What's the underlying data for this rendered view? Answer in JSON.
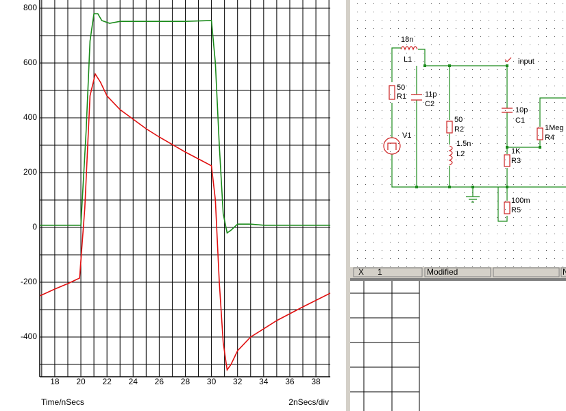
{
  "chart_data": {
    "type": "line",
    "x_label": "Time/nSecs",
    "scale_label": "2nSecs/div",
    "xlim": [
      16.85,
      39.1
    ],
    "ylim": [
      -545,
      830
    ],
    "xticks": [
      18,
      20,
      22,
      24,
      26,
      28,
      30,
      32,
      34,
      36,
      38
    ],
    "minor_xticks": [
      17,
      19,
      21,
      23,
      25,
      27,
      29,
      31,
      33,
      35,
      37,
      39
    ],
    "yticks": [
      -400,
      -200,
      0,
      200,
      400,
      600,
      800
    ],
    "minor_yticks": [
      -500,
      -300,
      -100,
      100,
      300,
      500,
      700
    ],
    "grid": true,
    "series": [
      {
        "color": "#1a8a1a",
        "x": [
          16.85,
          20,
          20.4,
          20.7,
          21,
          21.3,
          21.6,
          22.2,
          23,
          25,
          28,
          30,
          30.3,
          30.6,
          30.9,
          31.2,
          31.5,
          32,
          33,
          34,
          39.1
        ],
        "values": [
          8,
          8,
          350,
          680,
          780,
          780,
          755,
          745,
          752,
          752,
          752,
          755,
          600,
          300,
          50,
          -20,
          -10,
          12,
          12,
          8,
          8
        ]
      },
      {
        "color": "#e01010",
        "x": [
          16.85,
          18,
          19,
          19.9,
          20.3,
          20.7,
          21.1,
          21.5,
          22,
          23,
          25,
          26,
          28,
          29,
          30,
          30.3,
          30.6,
          30.9,
          31.2,
          31.5,
          32,
          33,
          35,
          37,
          39.1
        ],
        "values": [
          -250,
          -225,
          -205,
          -185,
          70,
          480,
          560,
          530,
          480,
          430,
          360,
          330,
          275,
          250,
          225,
          100,
          -200,
          -420,
          -520,
          -500,
          -450,
          -400,
          -340,
          -290,
          -240
        ]
      }
    ]
  },
  "schematic": {
    "labels": [
      "18n",
      "L1",
      "50",
      "R1",
      "11p",
      "C2",
      "V1",
      "50",
      "R2",
      "1.5n",
      "L2",
      "input",
      "10p",
      "C1",
      "1Meg",
      "R4",
      "1K",
      "R3",
      "100m",
      "R5"
    ]
  },
  "status_bar": {
    "cells": [
      "X",
      "1",
      "Modified",
      "N"
    ]
  }
}
